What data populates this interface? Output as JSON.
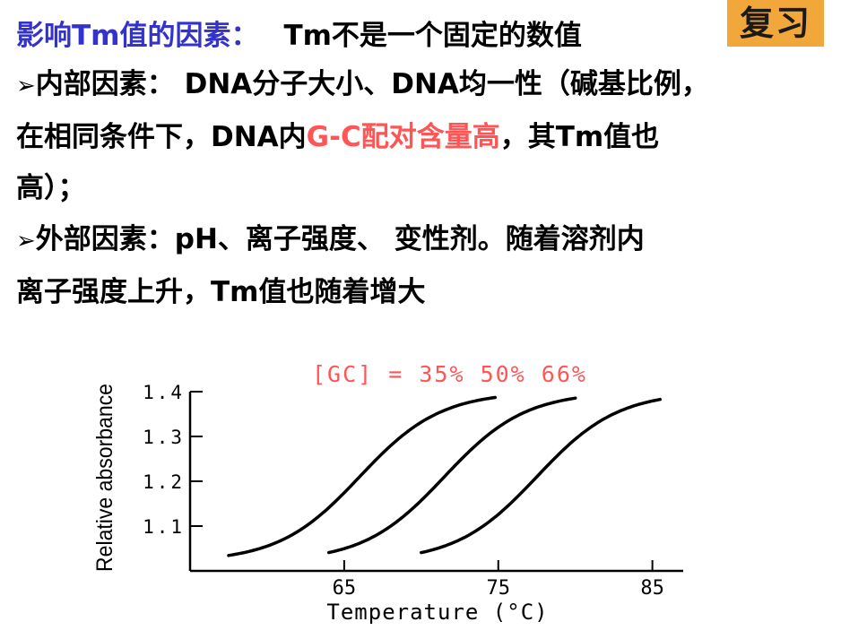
{
  "badge": {
    "label": "复习"
  },
  "title": {
    "label": "影响Tm值的因素：",
    "note": "Tm不是一个固定的数值"
  },
  "items": [
    {
      "bullet": "➢",
      "line1": "内部因素： DNA分子大小、DNA均一性（碱基比例，",
      "line2_before": "在相同条件下，DNA内",
      "line2_highlight": "G-C配对含量高",
      "line2_after": "，其Tm值也",
      "line3": "高）；"
    },
    {
      "bullet": "➢",
      "line1": "外部因素：pH、离子强度、 变性剂。随着溶剂内",
      "line2": "离子强度上升，Tm值也随着增大"
    }
  ],
  "chart_data": {
    "type": "line",
    "annotation": "[GC] = 35% 50% 66%",
    "xlabel": "Temperature (°C)",
    "ylabel": "Relative absorbance",
    "xlim": [
      55,
      87
    ],
    "ylim": [
      1.0,
      1.4
    ],
    "x_ticks": [
      "65",
      "75",
      "85"
    ],
    "y_ticks": [
      "1.1",
      "1.2",
      "1.3",
      "1.4"
    ],
    "grid": false,
    "series": [
      {
        "tm": 66,
        "x_start": 57.5,
        "x_end": 74.8,
        "y_min": 1.02,
        "y_max": 1.4
      },
      {
        "tm": 71.5,
        "x_start": 64,
        "x_end": 80,
        "y_min": 1.02,
        "y_max": 1.4
      },
      {
        "tm": 77.5,
        "x_start": 70,
        "x_end": 85.5,
        "y_min": 1.02,
        "y_max": 1.4
      }
    ],
    "colors": {
      "annotation": "#ff5555",
      "line": "#000000"
    }
  }
}
